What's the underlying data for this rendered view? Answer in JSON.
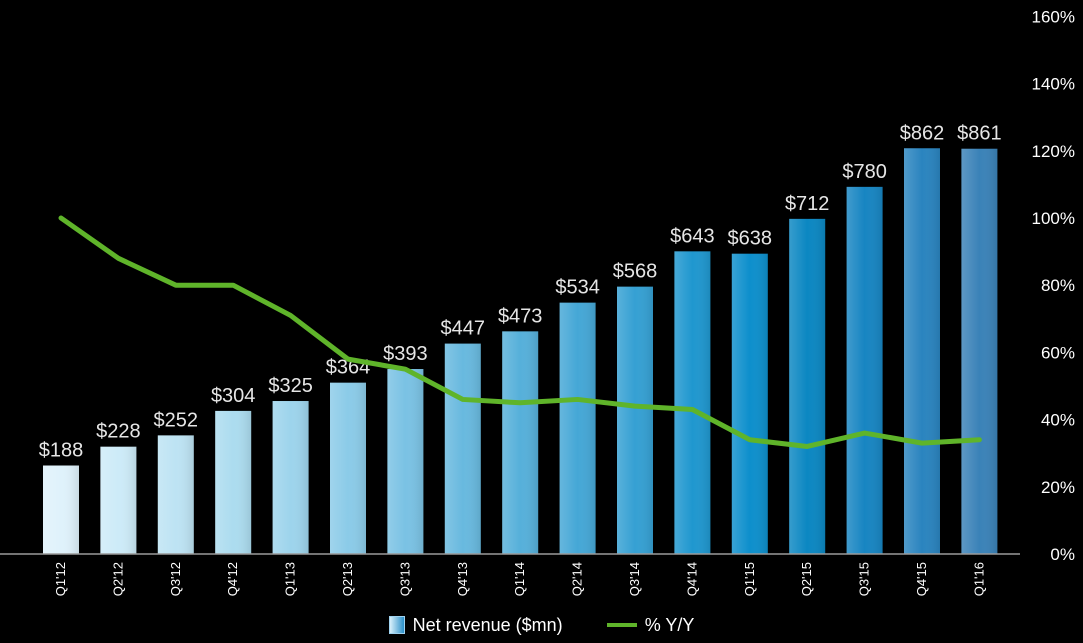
{
  "chart_data": {
    "type": "bar",
    "categories": [
      "Q1'12",
      "Q2'12",
      "Q3'12",
      "Q4'12",
      "Q1'13",
      "Q2'13",
      "Q3'13",
      "Q4'13",
      "Q1'14",
      "Q2'14",
      "Q3'14",
      "Q4'14",
      "Q1'15",
      "Q2'15",
      "Q3'15",
      "Q4'15",
      "Q1'16"
    ],
    "series": [
      {
        "name": "Net revenue ($mn)",
        "type": "bar",
        "axis": "left",
        "values": [
          188,
          228,
          252,
          304,
          325,
          364,
          393,
          447,
          473,
          534,
          568,
          643,
          638,
          712,
          780,
          862,
          861
        ],
        "value_labels": [
          "$188",
          "$228",
          "$252",
          "$304",
          "$325",
          "$364",
          "$393",
          "$447",
          "$473",
          "$534",
          "$568",
          "$643",
          "$638",
          "$712",
          "$780",
          "$862",
          "$861"
        ],
        "colors": [
          "#dff2fb",
          "#cdebf8",
          "#bde3f3",
          "#acdcef",
          "#9dd4ec",
          "#8bcbe8",
          "#7ac2e4",
          "#68b9df",
          "#56b0da",
          "#45a7d6",
          "#35a0d3",
          "#1f97cf",
          "#0d8fcc",
          "#0b87c2",
          "#1785c2",
          "#2a84bf",
          "#3a82b8"
        ]
      },
      {
        "name": "% Y/Y",
        "type": "line",
        "axis": "right",
        "values": [
          100,
          88,
          80,
          80,
          71,
          58,
          55,
          46,
          45,
          46,
          44,
          43,
          34,
          32,
          36,
          33,
          34
        ],
        "color": "#5fb42a"
      }
    ],
    "y2_ticks": [
      "0%",
      "20%",
      "40%",
      "60%",
      "80%",
      "100%",
      "120%",
      "140%",
      "160%"
    ],
    "y2lim": [
      0,
      160
    ],
    "ylim": [
      0,
      1000
    ],
    "grid": false,
    "legend_position": "bottom-center"
  }
}
